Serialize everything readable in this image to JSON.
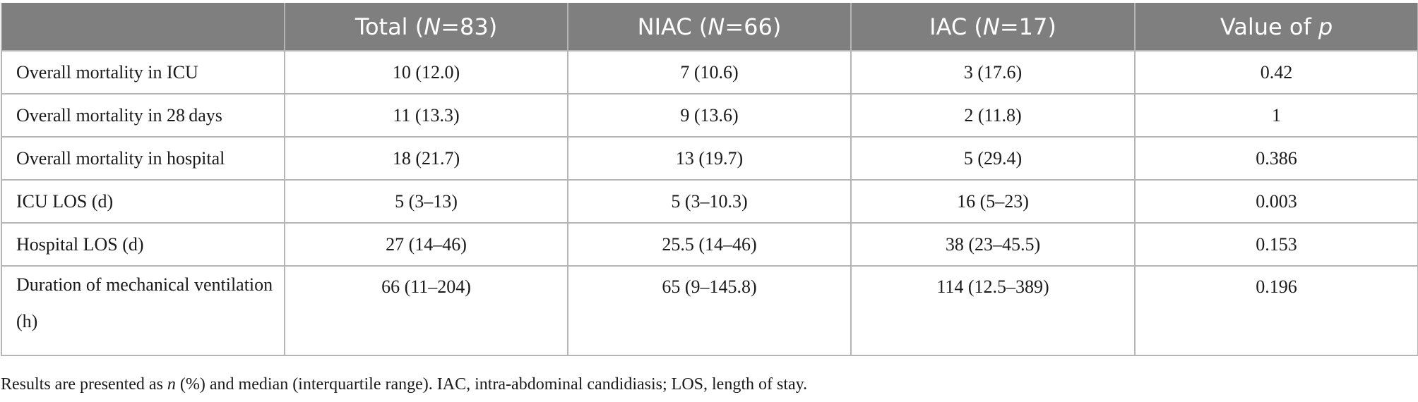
{
  "table": {
    "headers": [
      {
        "text": "",
        "italic": "",
        "after": ""
      },
      {
        "text": "Total (",
        "italic": "N",
        "after": "=83)"
      },
      {
        "text": "NIAC (",
        "italic": "N",
        "after": "=66)"
      },
      {
        "text": "IAC (",
        "italic": "N",
        "after": "=17)"
      },
      {
        "text": "Value of ",
        "italic": "p",
        "after": ""
      }
    ],
    "rows": [
      [
        "Overall mortality in ICU",
        "10 (12.0)",
        "7 (10.6)",
        "3 (17.6)",
        "0.42"
      ],
      [
        "Overall mortality in 28 days",
        "11 (13.3)",
        "9 (13.6)",
        "2 (11.8)",
        "1"
      ],
      [
        "Overall mortality in hospital",
        "18 (21.7)",
        "13 (19.7)",
        "5 (29.4)",
        "0.386"
      ],
      [
        "ICU LOS (d)",
        "5 (3–13)",
        "5 (3–10.3)",
        "16 (5–23)",
        "0.003"
      ],
      [
        "Hospital LOS (d)",
        "27 (14–46)",
        "25.5 (14–46)",
        "38 (23–45.5)",
        "0.153"
      ],
      [
        "Duration of mechanical ventilation (h)",
        "66 (11–204)",
        "65 (9–145.8)",
        "114 (12.5–389)",
        "0.196"
      ]
    ]
  },
  "footnote": {
    "before": "Results are presented as ",
    "italic": "n",
    "after": " (%) and median (interquartile range). IAC, intra-abdominal candidiasis; LOS, length of stay."
  }
}
